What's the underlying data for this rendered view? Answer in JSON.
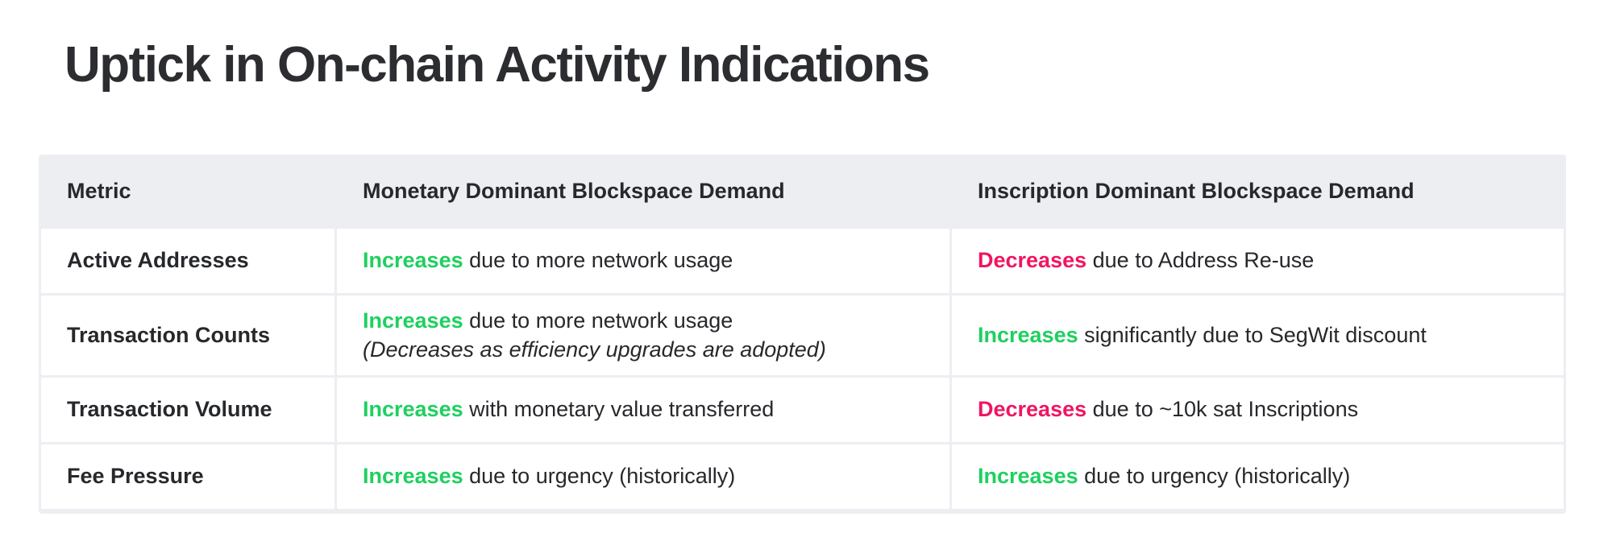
{
  "title": "Uptick in On-chain Activity Indications",
  "colors": {
    "increase": "#1ed05f",
    "decrease": "#f01562",
    "header_bg": "#eceef2",
    "body_text": "#26282b",
    "title_text": "#2b2d31"
  },
  "table": {
    "headers": [
      "Metric",
      "Monetary Dominant Blockspace Demand",
      "Inscription Dominant Blockspace Demand"
    ],
    "rows": [
      {
        "metric": "Active Addresses",
        "monetary": {
          "keyword": "Increases",
          "tone": "increase",
          "rest": "due to more network usage",
          "note": ""
        },
        "inscription": {
          "keyword": "Decreases",
          "tone": "decrease",
          "rest": "due to Address Re-use",
          "note": ""
        }
      },
      {
        "metric": "Transaction Counts",
        "monetary": {
          "keyword": "Increases",
          "tone": "increase",
          "rest": "due to more network usage",
          "note": "(Decreases as efficiency upgrades are adopted)"
        },
        "inscription": {
          "keyword": "Increases",
          "tone": "increase",
          "rest": "significantly due to SegWit discount",
          "note": ""
        }
      },
      {
        "metric": "Transaction Volume",
        "monetary": {
          "keyword": "Increases",
          "tone": "increase",
          "rest": "with monetary value transferred",
          "note": ""
        },
        "inscription": {
          "keyword": "Decreases",
          "tone": "decrease",
          "rest": "due to ~10k sat Inscriptions",
          "note": ""
        }
      },
      {
        "metric": "Fee Pressure",
        "monetary": {
          "keyword": "Increases",
          "tone": "increase",
          "rest": "due to urgency (historically)",
          "note": ""
        },
        "inscription": {
          "keyword": "Increases",
          "tone": "increase",
          "rest": "due to urgency (historically)",
          "note": ""
        }
      }
    ]
  },
  "chart_data": {
    "type": "table",
    "title": "Uptick in On-chain Activity Indications",
    "columns": [
      "Metric",
      "Monetary Dominant Blockspace Demand",
      "Inscription Dominant Blockspace Demand"
    ],
    "rows": [
      [
        "Active Addresses",
        "Increases due to more network usage",
        "Decreases due to Address Re-use"
      ],
      [
        "Transaction Counts",
        "Increases due to more network usage (Decreases as efficiency upgrades are adopted)",
        "Increases significantly due to SegWit discount"
      ],
      [
        "Transaction Volume",
        "Increases with monetary value transferred",
        "Decreases due to ~10k sat Inscriptions"
      ],
      [
        "Fee Pressure",
        "Increases due to urgency (historically)",
        "Increases due to urgency (historically)"
      ]
    ],
    "keyword_semantics": {
      "Increases": "green",
      "Decreases": "pink"
    },
    "layout": "header row gray, body rows white, thin gray separators"
  }
}
